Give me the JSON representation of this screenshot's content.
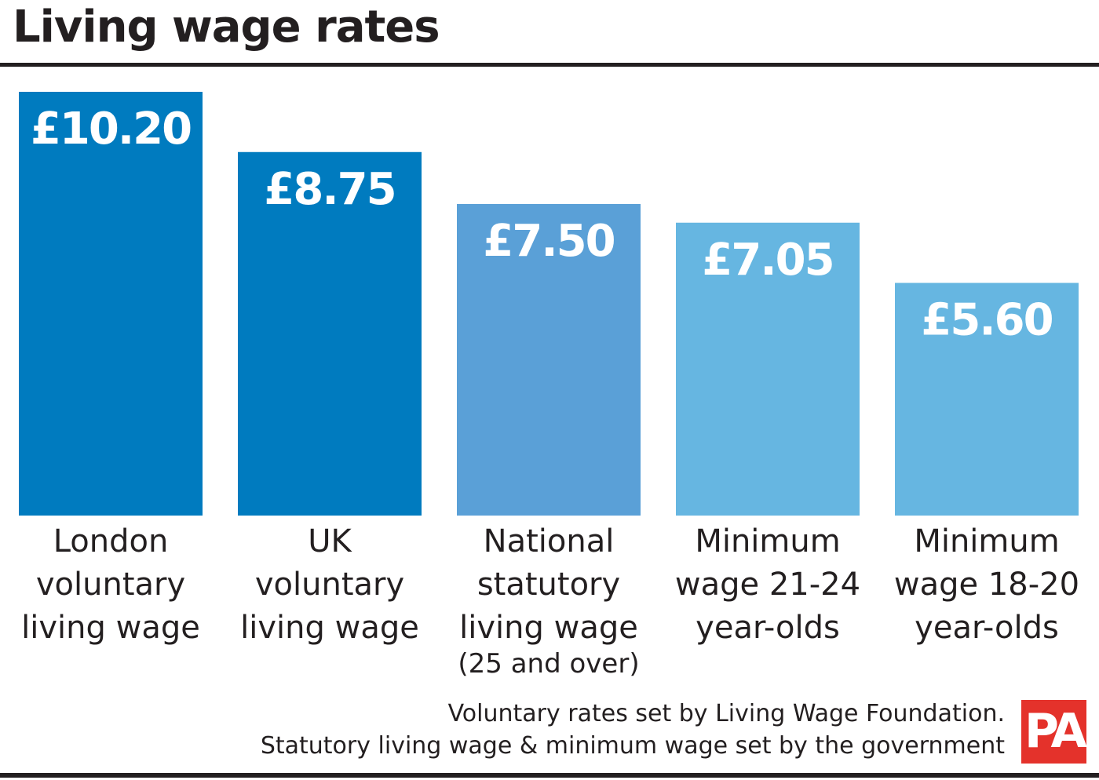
{
  "title": "Living wage rates",
  "chart_data": {
    "type": "bar",
    "title": "Living wage rates",
    "xlabel": "",
    "ylabel": "",
    "ylim": [
      0,
      10.2
    ],
    "grid": false,
    "categories": [
      {
        "lines": [
          "London",
          "voluntary",
          "living wage"
        ],
        "sublabel": "",
        "value": 10.2,
        "value_label": "£10.20",
        "color": "#007bbf"
      },
      {
        "lines": [
          "UK",
          "voluntary",
          "living wage"
        ],
        "sublabel": "",
        "value": 8.75,
        "value_label": "£8.75",
        "color": "#007bbf"
      },
      {
        "lines": [
          "National",
          "statutory",
          "living wage"
        ],
        "sublabel": "(25 and over)",
        "value": 7.5,
        "value_label": "£7.50",
        "color": "#5aa0d7"
      },
      {
        "lines": [
          "Minimum",
          "wage 21-24",
          "year-olds"
        ],
        "sublabel": "",
        "value": 7.05,
        "value_label": "£7.05",
        "color": "#66b6e1"
      },
      {
        "lines": [
          "Minimum",
          "wage 18-20",
          "year-olds"
        ],
        "sublabel": "",
        "value": 5.6,
        "value_label": "£5.60",
        "color": "#66b6e1"
      }
    ]
  },
  "footnote": {
    "line1": "Voluntary rates set by Living Wage Foundation.",
    "line2": "Statutory living wage & minimum wage set by the government"
  },
  "logo": {
    "text": "PA",
    "color": "#e4322b"
  }
}
